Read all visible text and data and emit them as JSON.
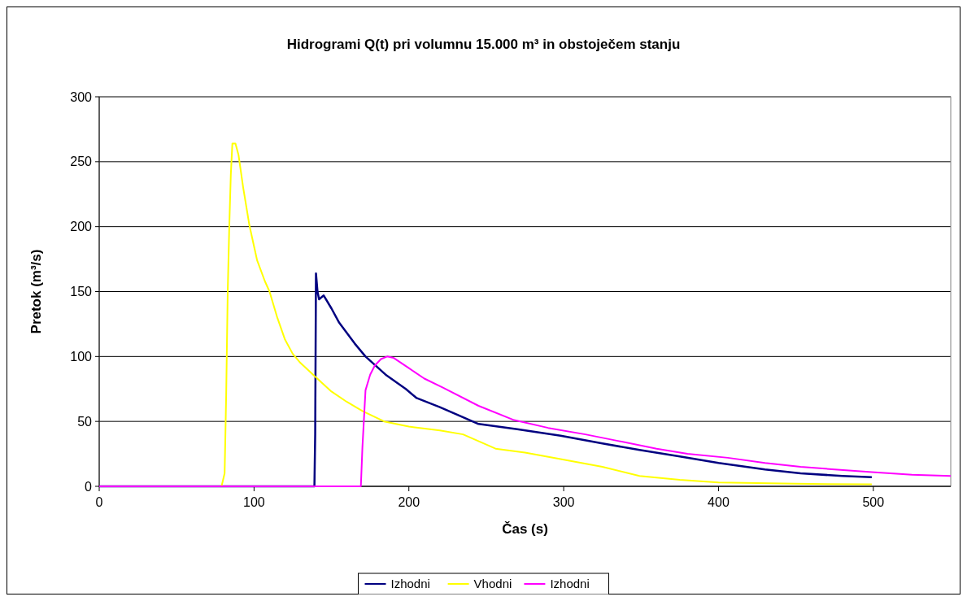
{
  "chart_data": {
    "type": "line",
    "title": "Hidrogrami Q(t) pri volumnu 15.000 m³ in obstoječem stanju",
    "xlabel": "Čas (s)",
    "ylabel": "Pretok (m³/s)",
    "xlim": [
      0,
      550
    ],
    "xticks": [
      0,
      100,
      200,
      300,
      400,
      500
    ],
    "ylim": [
      0,
      300
    ],
    "yticks": [
      0,
      50,
      100,
      150,
      200,
      250,
      300
    ],
    "grid": "y",
    "legend": "bottom",
    "marker": "none",
    "line_style": "solid",
    "series": [
      {
        "name": "Izhodni",
        "color": "#000080",
        "x": [
          0,
          139,
          139.5,
          140,
          141,
          142,
          145,
          150,
          155,
          165,
          172,
          185,
          198,
          205,
          220,
          245,
          270,
          298,
          325,
          349,
          375,
          400,
          430,
          453,
          480,
          499
        ],
        "values": [
          0,
          0,
          40,
          164,
          150,
          144,
          147,
          137,
          126,
          110,
          100,
          86,
          75,
          68,
          61,
          48,
          44,
          39,
          33,
          28,
          23,
          18,
          13,
          10,
          8,
          7
        ]
      },
      {
        "name": "Vhodni",
        "color": "#ffff00",
        "x": [
          0,
          79,
          81,
          82,
          83,
          84,
          85,
          86,
          88,
          90,
          93,
          97,
          102,
          107,
          110,
          115,
          120,
          125,
          130,
          139,
          150,
          160,
          170,
          184,
          200,
          220,
          235,
          256,
          275,
          298,
          325,
          349,
          375,
          400,
          450,
          499
        ],
        "values": [
          0,
          0,
          10,
          70,
          150,
          200,
          240,
          264,
          264,
          255,
          230,
          201,
          174,
          158,
          150,
          130,
          113,
          102,
          95,
          85,
          73,
          65,
          58,
          50,
          46,
          43,
          40,
          29,
          26,
          21,
          15,
          8,
          5,
          3,
          2,
          1.5
        ]
      },
      {
        "name": "Izhodni",
        "color": "#ff00ff",
        "x": [
          0,
          169,
          170,
          172,
          175,
          178,
          182,
          186,
          190,
          200,
          210,
          222,
          245,
          268,
          290,
          314,
          335,
          360,
          380,
          406,
          430,
          453,
          475,
          499,
          525,
          550
        ],
        "values": [
          0,
          0,
          30,
          74,
          86,
          93,
          98,
          100,
          99,
          91,
          83,
          76,
          62,
          51,
          45,
          40,
          35,
          29,
          25,
          22,
          18,
          15,
          13,
          11,
          9,
          8
        ]
      }
    ]
  }
}
